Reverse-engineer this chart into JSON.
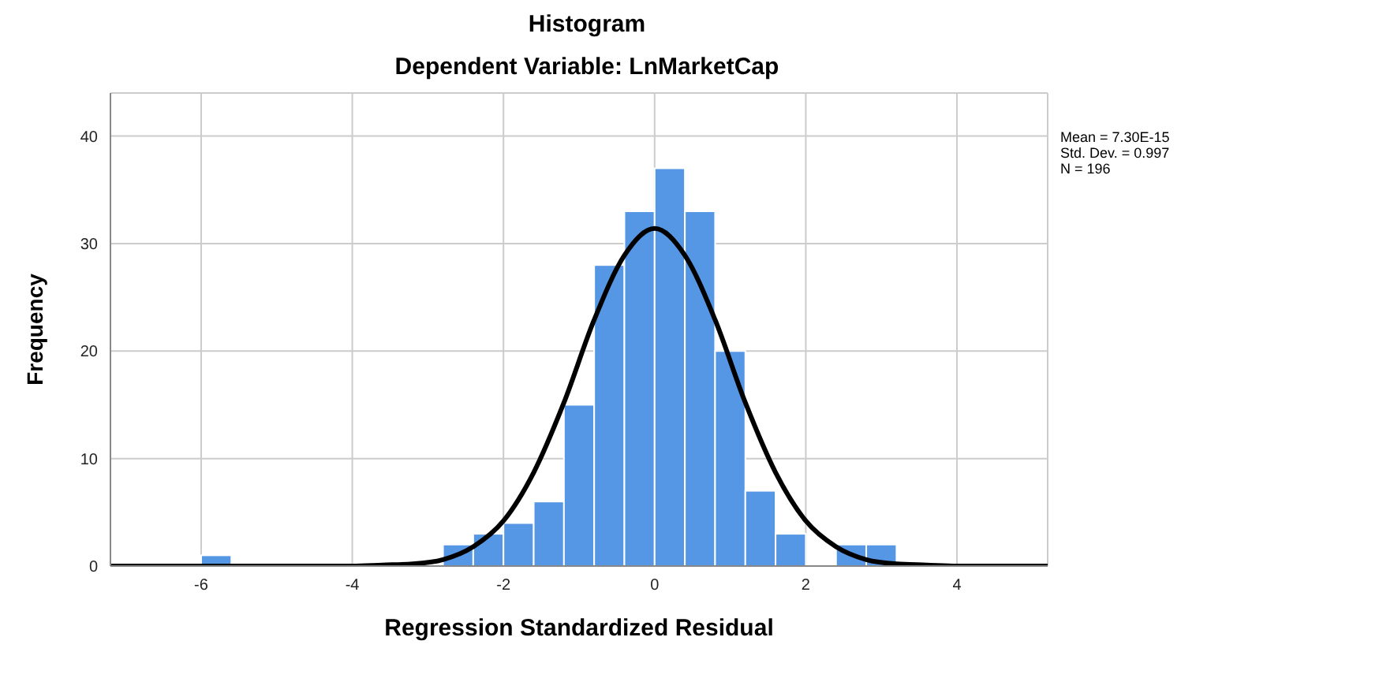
{
  "chart_data": {
    "type": "histogram",
    "title": "Histogram",
    "subtitle": "Dependent Variable: LnMarketCap",
    "xlabel": "Regression Standardized Residual",
    "ylabel": "Frequency",
    "bins": [
      -6,
      -5.6,
      -5.2,
      -4.8,
      -4.4,
      -4,
      -3.6,
      -3.2,
      -2.8,
      -2.4,
      -2,
      -1.6,
      -1.2,
      -0.8,
      -0.4,
      0,
      0.4,
      0.8,
      1.2,
      1.6,
      2,
      2.4,
      2.8,
      3.2
    ],
    "values": [
      1,
      0,
      0,
      0,
      0,
      0,
      0,
      0,
      2,
      3,
      4,
      6,
      15,
      28,
      33,
      37,
      33,
      20,
      7,
      3,
      0,
      2,
      2
    ],
    "color": "#5597e4",
    "series": [
      {
        "type": "line",
        "color": "#000000",
        "x": [
          -7.2,
          -4,
          -3.6,
          -3.2,
          -2.8,
          -2.4,
          -2,
          -1.6,
          -1.2,
          -0.8,
          -0.4,
          0,
          0.4,
          0.8,
          1.2,
          1.6,
          2,
          2.4,
          2.8,
          3.2,
          3.6,
          4,
          5.2
        ],
        "values": [
          0,
          0,
          0.1,
          0.2,
          0.6,
          1.8,
          4.2,
          8.7,
          15.2,
          22.9,
          28.9,
          31.4,
          28.9,
          22.9,
          15.2,
          8.7,
          4.2,
          1.8,
          0.6,
          0.2,
          0.1,
          0,
          0
        ]
      }
    ],
    "xlim": [
      -7.2,
      5.2
    ],
    "xticks": [
      -6,
      -4,
      -2,
      0,
      2,
      4
    ],
    "ylim": [
      0,
      44
    ],
    "yticks": [
      0,
      10,
      20,
      30,
      40
    ],
    "grid": true,
    "legend": false,
    "marker": "none",
    "annotations": [
      "Mean = 7.30E-15",
      "Std. Dev. = 0.997",
      "N = 196"
    ]
  }
}
